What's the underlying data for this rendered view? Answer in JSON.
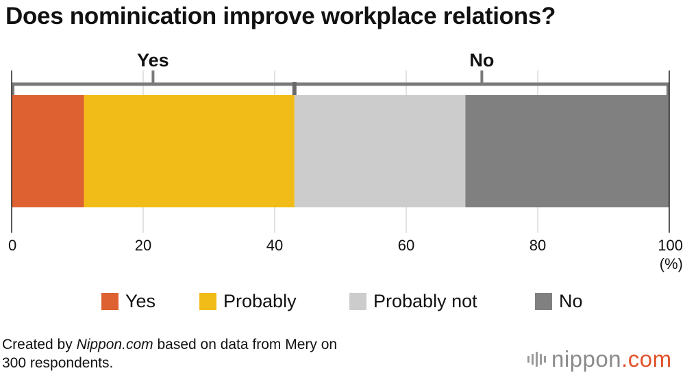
{
  "title": "Does nominication improve workplace relations?",
  "chart_data": {
    "type": "bar",
    "orientation": "horizontal-stacked",
    "categories": [
      ""
    ],
    "series": [
      {
        "name": "Yes",
        "values": [
          11
        ],
        "color": "#dd6131"
      },
      {
        "name": "Probably",
        "values": [
          32
        ],
        "color": "#f1bc17"
      },
      {
        "name": "Probably not",
        "values": [
          26
        ],
        "color": "#cccccc"
      },
      {
        "name": "No",
        "values": [
          31
        ],
        "color": "#808080"
      }
    ],
    "xlim": [
      0,
      100
    ],
    "xticks": [
      "0",
      "20",
      "40",
      "60",
      "80",
      "100"
    ],
    "xunit": "(%)",
    "grid": true,
    "groups": [
      {
        "label": "Yes",
        "from": 0,
        "to": 43
      },
      {
        "label": "No",
        "from": 43,
        "to": 100
      }
    ],
    "legend_placement": "bottom"
  },
  "source": {
    "prefix": "Created by ",
    "site": "Nippon.com",
    "line1_rest": " based on data from Mery on",
    "line2": "300 respondents."
  },
  "brand": {
    "text": "nippon",
    "suffix": ".com",
    "accent": "#e0522b"
  }
}
